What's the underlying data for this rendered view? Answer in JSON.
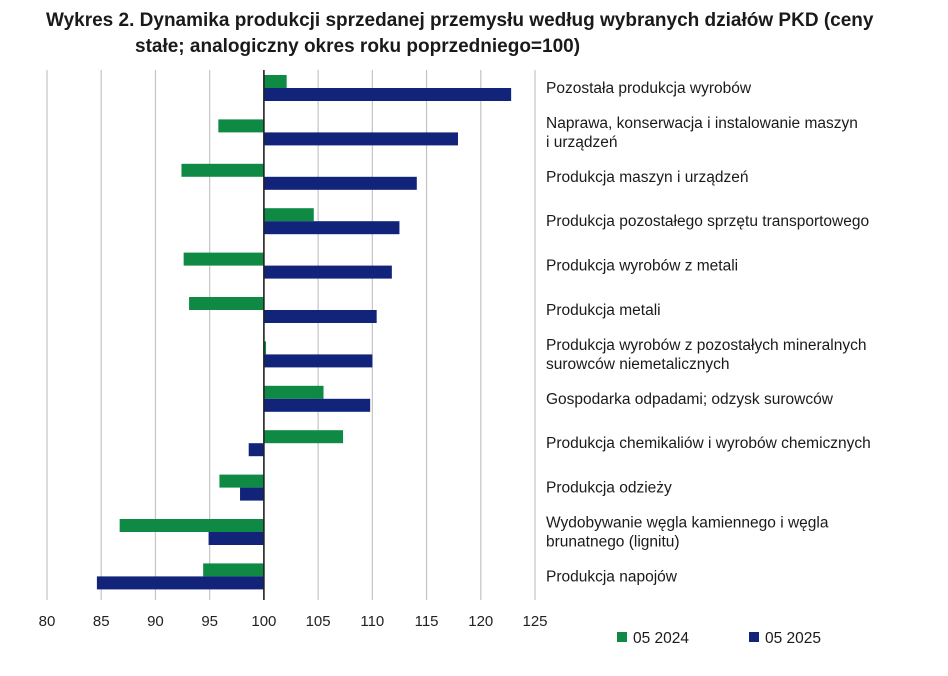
{
  "title_line1": "Wykres 2. Dynamika produkcji sprzedanej przemysłu według wybranych działów PKD (ceny",
  "title_line2": "stałe; analogiczny okres roku poprzedniego=100)",
  "chart_data": {
    "type": "bar",
    "orientation": "horizontal",
    "title": "Wykres 2. Dynamika produkcji sprzedanej przemysłu według wybranych działów PKD (ceny stałe; analogiczny okres roku poprzedniego=100)",
    "xlim": [
      80,
      125
    ],
    "baseline": 100,
    "x_ticks": [
      80,
      85,
      90,
      95,
      100,
      105,
      110,
      115,
      120,
      125
    ],
    "grid": "vertical",
    "legend_position": "bottom-right",
    "categories": [
      [
        "Pozostała produkcja wyrobów"
      ],
      [
        "Naprawa, konserwacja i instalowanie maszyn",
        "i urządzeń"
      ],
      [
        "Produkcja maszyn i urządzeń"
      ],
      [
        "Produkcja pozostałego sprzętu transportowego"
      ],
      [
        "Produkcja wyrobów z metali"
      ],
      [
        "Produkcja metali"
      ],
      [
        "Produkcja wyrobów z pozostałych mineralnych",
        "surowców niemetalicznych"
      ],
      [
        "Gospodarka odpadami; odzysk surowców"
      ],
      [
        "Produkcja chemikaliów i wyrobów chemicznych"
      ],
      [
        "Produkcja odzieży"
      ],
      [
        "Wydobywanie węgla kamiennego i węgla",
        "brunatnego (lignitu)"
      ],
      [
        "Produkcja napojów"
      ]
    ],
    "series": [
      {
        "name": "05 2024",
        "color": "#0e8a45",
        "values": [
          102.1,
          95.8,
          92.4,
          104.6,
          92.6,
          93.1,
          100.2,
          105.5,
          107.3,
          95.9,
          86.7,
          94.4
        ]
      },
      {
        "name": "05 2025",
        "color": "#12237a",
        "values": [
          122.8,
          117.9,
          114.1,
          112.5,
          111.8,
          110.4,
          110.0,
          109.8,
          98.6,
          97.8,
          94.9,
          84.6
        ]
      }
    ]
  }
}
